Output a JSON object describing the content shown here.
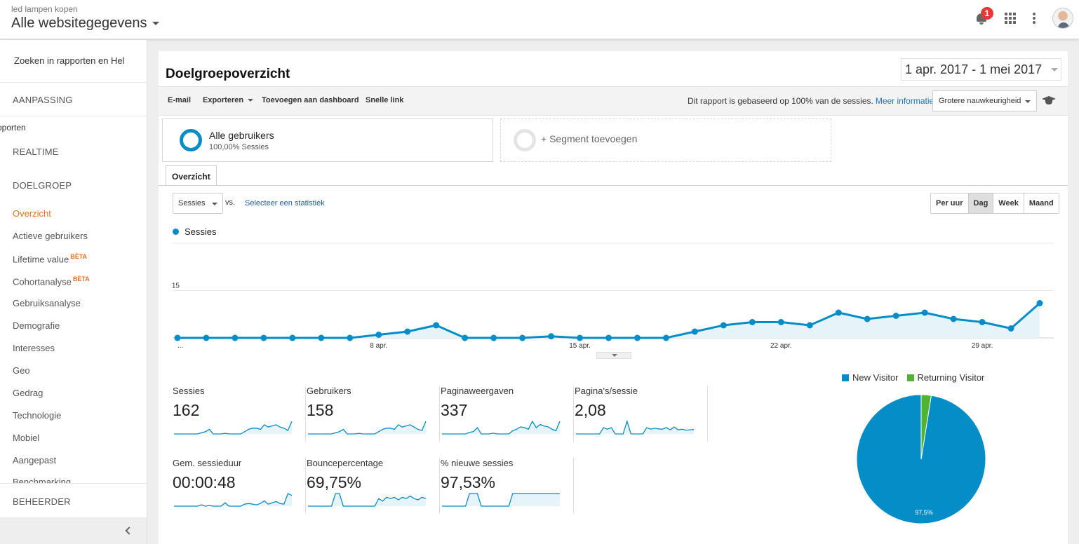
{
  "header": {
    "account_name": "led lampen kopen",
    "property_name": "Alle websitegegevens",
    "notification_count": "1"
  },
  "sidebar": {
    "search_placeholder": "Zoeken in rapporten en Hel",
    "customization": "AANPASSING",
    "reports_section": "pporten",
    "realtime": "REALTIME",
    "audience": "DOELGROEP",
    "items": [
      {
        "label": "Overzicht",
        "beta": ""
      },
      {
        "label": "Actieve gebruikers",
        "beta": ""
      },
      {
        "label": "Lifetime value",
        "beta": "BÈTA"
      },
      {
        "label": "Cohortanalyse",
        "beta": "BÈTA"
      },
      {
        "label": "Gebruiksanalyse",
        "beta": ""
      },
      {
        "label": "Demografie",
        "beta": ""
      },
      {
        "label": "Interesses",
        "beta": ""
      },
      {
        "label": "Geo",
        "beta": ""
      },
      {
        "label": "Gedrag",
        "beta": ""
      },
      {
        "label": "Technologie",
        "beta": ""
      },
      {
        "label": "Mobiel",
        "beta": ""
      },
      {
        "label": "Aangepast",
        "beta": ""
      },
      {
        "label": "Benchmarking",
        "beta": ""
      }
    ],
    "admin": "BEHEERDER"
  },
  "report": {
    "title": "Doelgroepoverzicht",
    "date_range": "1 apr. 2017 - 1 mei 2017",
    "toolbar": {
      "email": "E-mail",
      "export": "Exporteren",
      "add_dashboard": "Toevoegen aan dashboard",
      "shortcut": "Snelle link",
      "info": "Dit rapport is gebaseerd op 100% van de sessies.",
      "more_info": "Meer informatie",
      "precision": "Grotere nauwkeurigheid"
    },
    "segments": [
      {
        "title": "Alle gebruikers",
        "subtitle": "100,00% Sessies"
      },
      {
        "title": "+ Segment toevoegen"
      }
    ],
    "tab": "Overzicht",
    "metric_selector": "Sessies",
    "vs": "vs.",
    "select_stat": "Selecteer een statistiek",
    "granularity": [
      "Per uur",
      "Dag",
      "Week",
      "Maand"
    ],
    "granularity_selected": "Dag"
  },
  "chart_data": {
    "type": "line",
    "series": [
      {
        "name": "Sessies",
        "values": [
          0,
          0,
          0,
          0,
          0,
          0,
          0,
          1,
          2,
          4,
          0,
          0,
          0,
          0.5,
          0,
          0,
          0,
          0,
          2,
          4,
          5,
          5,
          4,
          8,
          6,
          7,
          8,
          6,
          5,
          3,
          11
        ]
      }
    ],
    "yticks": [
      15,
      30
    ],
    "ylim": [
      0,
      30
    ],
    "xticks": [
      {
        "index": 0,
        "label": "..."
      },
      {
        "index": 7,
        "label": "8 apr."
      },
      {
        "index": 14,
        "label": "15 apr."
      },
      {
        "index": 21,
        "label": "22 apr."
      },
      {
        "index": 28,
        "label": "29 apr."
      }
    ],
    "colors": {
      "line": "#058dc7",
      "fill": "#e6f4fa"
    }
  },
  "metrics": [
    {
      "label": "Sessies",
      "value": "162",
      "spark": [
        0,
        0,
        0,
        0,
        0,
        0,
        0,
        1,
        2,
        4,
        0,
        0,
        0,
        0.5,
        0,
        0,
        0,
        0,
        2,
        4,
        5,
        5,
        4,
        8,
        6,
        7,
        8,
        6,
        5,
        3,
        11
      ]
    },
    {
      "label": "Gebruikers",
      "value": "158",
      "spark": [
        0,
        0,
        0,
        0,
        0,
        0,
        0,
        1,
        2,
        4,
        0,
        0,
        0,
        0.5,
        0,
        0,
        0,
        0,
        2,
        4,
        5,
        5,
        4,
        8,
        6,
        7,
        8,
        6,
        4,
        3,
        11
      ]
    },
    {
      "label": "Paginaweergaven",
      "value": "337",
      "spark": [
        0,
        0,
        0,
        0,
        0,
        0,
        0,
        2,
        3,
        8,
        0,
        0,
        0,
        1,
        0,
        0,
        0,
        0,
        4,
        6,
        9,
        8,
        6,
        16,
        8,
        12,
        10,
        9,
        6,
        4,
        16
      ]
    },
    {
      "label": "Pagina's/sessie",
      "value": "2,08",
      "spark": [
        0,
        0,
        0,
        0,
        0,
        0,
        0,
        2,
        1.5,
        2,
        0,
        0,
        0,
        4,
        0,
        0,
        0,
        0,
        2,
        1.5,
        1.8,
        1.6,
        1.5,
        2,
        1.3,
        2.2,
        1.3,
        1.5,
        1.2,
        1.3,
        1.4
      ]
    },
    {
      "label": "Gem. sessieduur",
      "value": "00:00:48",
      "spark": [
        0,
        0,
        0,
        0,
        0,
        0,
        0,
        20,
        0,
        10,
        0,
        0,
        0,
        50,
        0,
        0,
        0,
        0,
        30,
        40,
        30,
        20,
        40,
        80,
        30,
        50,
        70,
        40,
        30,
        190,
        160
      ]
    },
    {
      "label": "Bouncepercentage",
      "value": "69,75%",
      "spark": [
        0,
        0,
        0,
        0,
        0,
        0,
        0,
        100,
        100,
        0,
        0,
        0,
        0,
        0,
        0,
        0,
        0,
        0,
        60,
        40,
        70,
        60,
        70,
        50,
        70,
        60,
        80,
        60,
        50,
        70,
        60
      ]
    },
    {
      "label": "% nieuwe sessies",
      "value": "97,53%",
      "spark": [
        0,
        0,
        0,
        0,
        0,
        0,
        0,
        100,
        100,
        100,
        0,
        0,
        0,
        0,
        0,
        0,
        0,
        0,
        100,
        100,
        100,
        100,
        100,
        100,
        100,
        100,
        100,
        100,
        100,
        100,
        100
      ]
    }
  ],
  "pie": {
    "legend": [
      {
        "label": "New Visitor",
        "color": "#058dc7"
      },
      {
        "label": "Returning Visitor",
        "color": "#50b432"
      }
    ],
    "values": [
      97.5,
      2.5
    ],
    "label": "97,5%"
  }
}
